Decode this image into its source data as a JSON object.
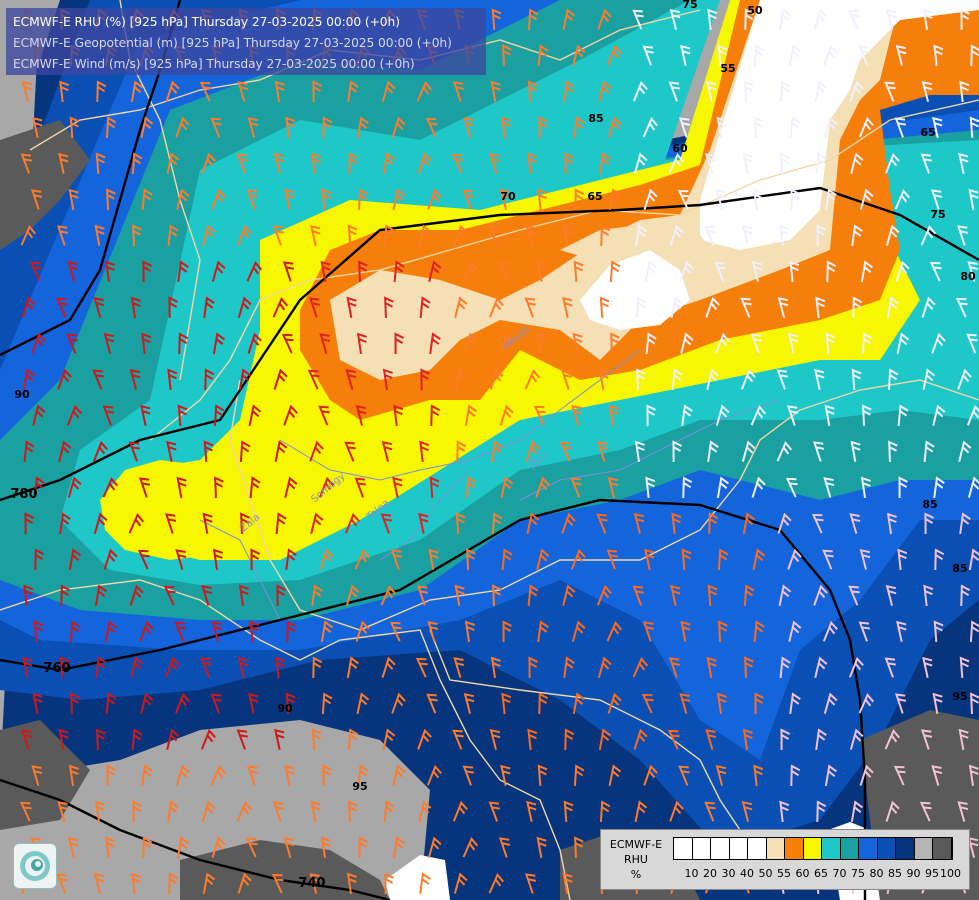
{
  "titles": {
    "line1": "ECMWF-E RHU (%) [925 hPa] Thursday 27-03-2025 00:00 (+0h)",
    "line2": "ECMWF-E Geopotential (m) [925 hPa] Thursday 27-03-2025 00:00 (+0h)",
    "line3": "ECMWF-E Wind (m/s) [925 hPa] Thursday 27-03-2025 00:00 (+0h)"
  },
  "legend": {
    "title": "ECMWF-E\nRHU\n%",
    "title_lines": [
      "ECMWF-E",
      "RHU",
      "%"
    ],
    "colors": [
      "#ffffff",
      "#ffffff",
      "#ffffff",
      "#ffffff",
      "#ffffff",
      "#f5dfb5",
      "#f57f0a",
      "#f7f700",
      "#1ec8c8",
      "#1aa0a0",
      "#1464dc",
      "#0a50b4",
      "#06347d",
      "#b4b4b4",
      "#5a5a5a"
    ],
    "ticks": [
      "10",
      "20",
      "30",
      "40",
      "50",
      "55",
      "60",
      "65",
      "70",
      "75",
      "80",
      "85",
      "90",
      "95",
      "100"
    ]
  },
  "geopotential_labels": [
    "780",
    "760",
    "740"
  ],
  "rhu_labels": [
    "50",
    "55",
    "60",
    "65",
    "65",
    "70",
    "75",
    "75",
    "80",
    "85",
    "85",
    "85",
    "90",
    "90",
    "95",
    "95"
  ],
  "place_labels": [
    "Zala",
    "Somogy",
    "Tolna",
    "Heves",
    "Jász"
  ],
  "colors": {
    "gray_dark": "#5a5a5a",
    "gray_light": "#a8a8a8",
    "navy": "#06347d",
    "blue": "#0a50b4",
    "blue_mid": "#1464dc",
    "teal_dark": "#1aa0a0",
    "cyan": "#1ec8c8",
    "yellow": "#f7f700",
    "orange": "#f57f0a",
    "tan": "#f5dfb5",
    "white": "#ffffff",
    "border": "#f0d7a5",
    "contour": "#000000"
  }
}
